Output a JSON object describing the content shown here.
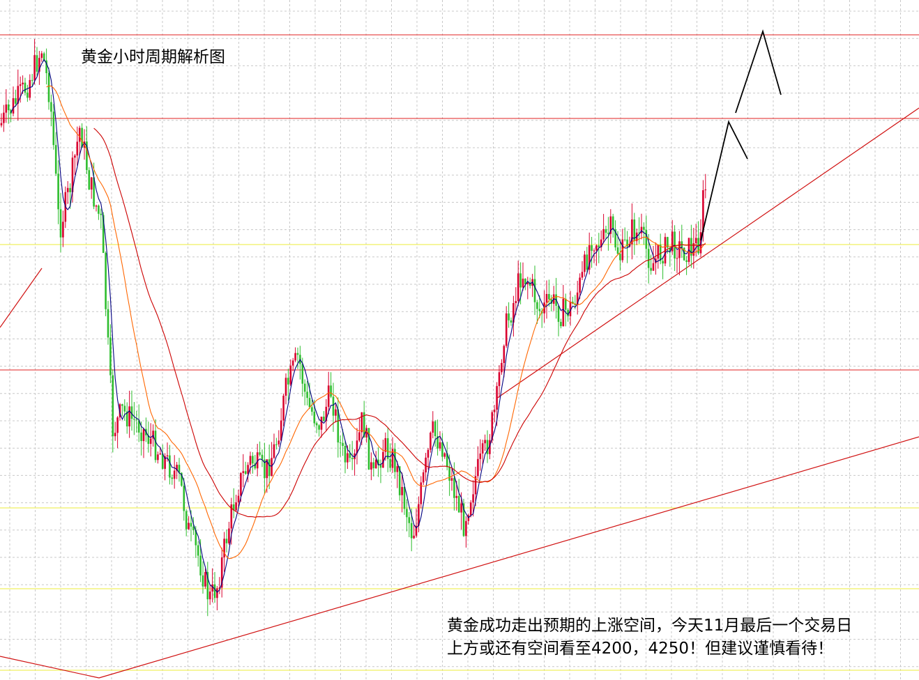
{
  "chart_data": {
    "type": "candlestick",
    "title": "黄金小时周期解析图",
    "annotation": {
      "line1": "黄金成功走出预期的上涨空间，今天11月最后一个交易日",
      "line2": "上方或还有空间看至4200，4250！但建议谨慎看待！"
    },
    "grid": true,
    "colors": {
      "up_candle": "#d9002e",
      "down_candle": "#2ebd2e",
      "ma_short": "#000080",
      "ma_mid": "#ff6600",
      "ma_long": "#cc0000",
      "resistance_line": "#e02020",
      "support_line": "#f0f060",
      "trend_line": "#d01010",
      "forecast_path": "#000000",
      "grid": "#c8c8c8"
    },
    "price_levels": {
      "resistance": [
        "top line",
        "upper line",
        "middle line"
      ],
      "support": [
        "upper support",
        "lower support 1",
        "lower support 2",
        "bottom support"
      ]
    },
    "forecast_path": "up-then-down arrows toward 4200 / 4250"
  }
}
